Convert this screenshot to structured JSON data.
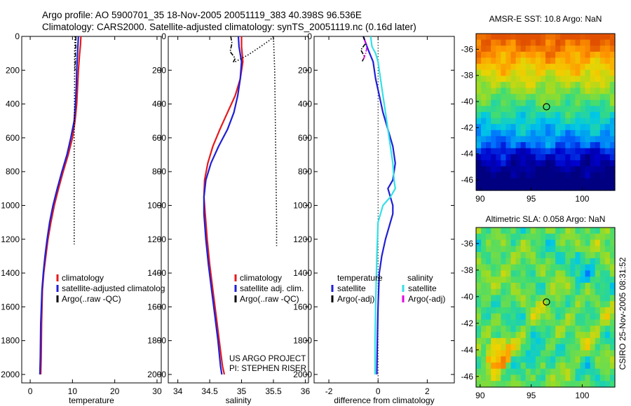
{
  "header": {
    "title_line1": "Argo profile: AO 5900701_35 18-Nov-2005 20051119_383 40.398S 96.536E",
    "title_line2": "Climatology: CARS2000. Satellite-adjusted climatology: synTS_20051119.nc (0.16d later)"
  },
  "side_label": "CSIRO 25-Nov-2005 08:31:52",
  "colors": {
    "climatology": "#e41a1c",
    "satellite": "#1f1fd6",
    "argo": "#000000",
    "sat_diff_salinity": "#33e0e6",
    "argo_diff_salinity": "#e600e6",
    "axes": "#000000"
  },
  "chart_data": [
    {
      "id": "temperature",
      "type": "line",
      "xlabel": "temperature",
      "ylabel": "",
      "xlim": [
        -2,
        31
      ],
      "ylim": [
        0,
        2050
      ],
      "y_reversed": true,
      "xticks": [
        0,
        10,
        20,
        30
      ],
      "yticks": [
        0,
        200,
        400,
        600,
        800,
        1000,
        1200,
        1400,
        1600,
        1800,
        2000
      ],
      "legend": [
        "climatology",
        "satellite-adjusted climatolog",
        "Argo(..raw -QC)"
      ],
      "series": [
        {
          "name": "climatology",
          "style": "solid",
          "color_key": "climatology",
          "x": [
            12.0,
            11.9,
            11.7,
            11.4,
            11.2,
            11.0,
            10.6,
            10.0,
            9.0,
            7.8,
            6.7,
            5.7,
            4.9,
            4.2,
            3.7,
            3.2,
            2.9,
            2.7,
            2.6,
            2.5
          ],
          "y": [
            0,
            50,
            100,
            200,
            300,
            400,
            500,
            600,
            700,
            800,
            900,
            1000,
            1100,
            1200,
            1300,
            1400,
            1500,
            1700,
            1900,
            2000
          ]
        },
        {
          "name": "satellite-adjusted climatolog",
          "style": "solid",
          "color_key": "satellite",
          "x": [
            11.4,
            11.3,
            11.2,
            11.0,
            10.9,
            10.7,
            10.4,
            9.6,
            8.7,
            7.5,
            6.4,
            5.4,
            4.6,
            4.0,
            3.5,
            3.1,
            2.8,
            2.5,
            2.4,
            2.3
          ],
          "y": [
            0,
            50,
            100,
            200,
            300,
            400,
            500,
            600,
            700,
            800,
            900,
            1000,
            1100,
            1200,
            1300,
            1400,
            1500,
            1700,
            1900,
            2000
          ]
        },
        {
          "name": "Argo(..raw -QC)",
          "style": "dash-dot",
          "color_key": "argo",
          "x": [
            10.8,
            10.8,
            10.7,
            10.7,
            10.6,
            10.6
          ],
          "y": [
            0,
            60,
            100,
            140,
            180,
            200
          ]
        },
        {
          "name": "Argo(..raw -QC)",
          "style": "dotted",
          "color_key": "argo",
          "x": [
            10.6,
            10.5,
            10.5,
            10.4,
            10.4,
            10.4
          ],
          "y": [
            0,
            100,
            300,
            600,
            900,
            1230
          ]
        }
      ]
    },
    {
      "id": "salinity",
      "type": "line",
      "xlabel": "salinity",
      "ylabel": "",
      "xlim": [
        33.85,
        36.05
      ],
      "ylim": [
        0,
        2050
      ],
      "y_reversed": true,
      "xticks": [
        34,
        34.5,
        35,
        35.5,
        36
      ],
      "yticks": [
        0,
        200,
        400,
        600,
        800,
        1000,
        1200,
        1400,
        1600,
        1800,
        2000
      ],
      "legend": [
        "climatology",
        "satellite adj. clim.",
        "Argo(..raw -QC)"
      ],
      "annotation": [
        "US ARGO PROJECT",
        "PI: STEPHEN RISER"
      ],
      "series": [
        {
          "name": "climatology",
          "style": "solid",
          "color_key": "climatology",
          "x": [
            35.0,
            35.0,
            35.02,
            34.98,
            34.9,
            34.78,
            34.66,
            34.55,
            34.47,
            34.42,
            34.41,
            34.43,
            34.46,
            34.5,
            34.55,
            34.6,
            34.65,
            34.7,
            34.73
          ],
          "y": [
            0,
            60,
            150,
            250,
            350,
            450,
            550,
            650,
            750,
            850,
            950,
            1050,
            1200,
            1350,
            1500,
            1650,
            1800,
            1950,
            2000
          ]
        },
        {
          "name": "satellite adj. clim.",
          "style": "solid",
          "color_key": "satellite",
          "x": [
            34.95,
            34.96,
            35.0,
            34.98,
            34.94,
            34.88,
            34.78,
            34.64,
            34.52,
            34.44,
            34.41,
            34.41,
            34.44,
            34.48,
            34.53,
            34.58,
            34.63,
            34.67,
            34.69
          ],
          "y": [
            0,
            60,
            150,
            250,
            350,
            450,
            550,
            650,
            750,
            850,
            950,
            1050,
            1200,
            1350,
            1500,
            1650,
            1800,
            1950,
            2000
          ]
        },
        {
          "name": "Argo(..raw -QC)",
          "style": "dash-dot",
          "color_key": "argo",
          "x": [
            34.83,
            34.85,
            34.82,
            34.9,
            34.86
          ],
          "y": [
            0,
            40,
            90,
            130,
            160
          ]
        },
        {
          "name": "Argo(..raw -QC)",
          "style": "dotted",
          "color_key": "argo",
          "x": [
            34.9,
            35.1,
            35.3,
            35.45,
            35.5,
            35.52,
            35.53,
            35.54,
            35.55,
            35.55
          ],
          "y": [
            150,
            110,
            60,
            20,
            0,
            200,
            500,
            800,
            1100,
            1240
          ]
        }
      ]
    },
    {
      "id": "difference",
      "type": "line",
      "xlabel": "difference from climatology",
      "ylabel": "",
      "xlim": [
        -2.6,
        3.1
      ],
      "ylim": [
        0,
        2050
      ],
      "y_reversed": true,
      "xticks": [
        -2,
        0,
        2
      ],
      "yticks": [
        0,
        200,
        400,
        600,
        800,
        1000,
        1200,
        1400,
        1600,
        1800,
        2000
      ],
      "zero_line": true,
      "legend_headers": [
        "temperature",
        "salinity"
      ],
      "legend": [
        "satellite",
        "Argo(-adj)",
        "satellite",
        "Argo(-adj)"
      ],
      "series": [
        {
          "name": "satellite",
          "group": "temperature",
          "style": "solid",
          "color_key": "satellite",
          "x": [
            -0.6,
            -0.4,
            -0.2,
            -0.1,
            0.05,
            0.2,
            0.4,
            0.6,
            0.7,
            0.6,
            0.4,
            0.5,
            0.6,
            0.6,
            0.5,
            0.3,
            0.15,
            0.05,
            0.0,
            -0.03,
            -0.05
          ],
          "y": [
            0,
            80,
            150,
            250,
            350,
            450,
            550,
            650,
            750,
            850,
            900,
            950,
            1000,
            1050,
            1100,
            1200,
            1300,
            1400,
            1600,
            1800,
            2000
          ]
        },
        {
          "name": "satellite",
          "group": "salinity",
          "style": "solid",
          "color_key": "sat_diff_salinity",
          "x": [
            -0.3,
            -0.25,
            -0.1,
            0.0,
            0.1,
            0.2,
            0.3,
            0.4,
            0.5,
            0.6,
            0.65,
            0.7,
            0.5,
            0.2,
            0.0,
            -0.05,
            -0.1,
            -0.12,
            -0.12
          ],
          "y": [
            0,
            60,
            100,
            150,
            250,
            350,
            450,
            550,
            650,
            750,
            850,
            900,
            950,
            1000,
            1100,
            1300,
            1600,
            1800,
            2000
          ]
        },
        {
          "name": "Argo(-adj)",
          "group": "temperature",
          "style": "dash-dot",
          "color_key": "argo",
          "x": [
            -0.6,
            -0.5,
            -0.7,
            -0.55,
            -0.65
          ],
          "y": [
            0,
            40,
            80,
            120,
            150
          ]
        },
        {
          "name": "Argo(-adj)",
          "group": "salinity",
          "style": "dash-dot",
          "color_key": "argo_diff_salinity",
          "x": [
            -0.55,
            -0.45,
            -0.5,
            -0.6
          ],
          "y": [
            20,
            60,
            100,
            140
          ]
        }
      ]
    }
  ],
  "maps": [
    {
      "id": "sst-map",
      "title": "AMSR-E SST: 10.8 Argo: NaN",
      "xticks": [
        90,
        95,
        100
      ],
      "yticks": [
        -36,
        -38,
        -40,
        -42,
        -44,
        -46
      ],
      "marker": {
        "lon": 96.5,
        "lat": -40.4
      }
    },
    {
      "id": "sla-map",
      "title": "Altimetric SLA: 0.058 Argo: NaN",
      "xticks": [
        90,
        95,
        100
      ],
      "yticks": [
        -36,
        -38,
        -40,
        -42,
        -44,
        -46
      ],
      "marker": {
        "lon": 96.5,
        "lat": -40.4
      }
    }
  ]
}
